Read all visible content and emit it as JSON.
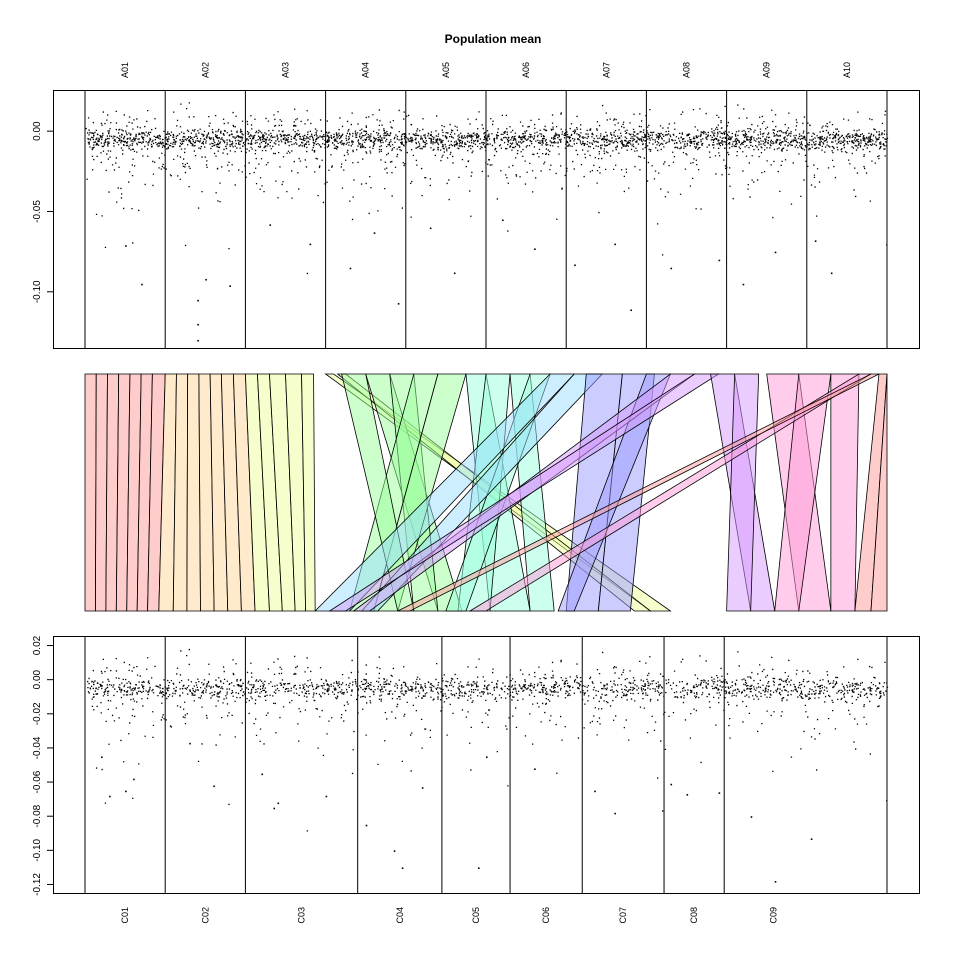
{
  "chart_data": [
    {
      "type": "scatter",
      "title": "Population mean",
      "xlabel": "",
      "ylabel": "",
      "ylim": [
        -0.135,
        0.025
      ],
      "yticks": [
        0.0,
        -0.05,
        -0.1
      ],
      "ytick_labels": [
        "0.00",
        "-0.05",
        "-0.10"
      ],
      "chromosomes": [
        {
          "name": "A01",
          "start": 0.0,
          "end": 1.0
        },
        {
          "name": "A02",
          "start": 1.0,
          "end": 2.0
        },
        {
          "name": "A03",
          "start": 2.0,
          "end": 3.0
        },
        {
          "name": "A04",
          "start": 3.0,
          "end": 4.0
        },
        {
          "name": "A05",
          "start": 4.0,
          "end": 5.0
        },
        {
          "name": "A06",
          "start": 5.0,
          "end": 6.0
        },
        {
          "name": "A07",
          "start": 6.0,
          "end": 7.0
        },
        {
          "name": "A08",
          "start": 7.0,
          "end": 8.0
        },
        {
          "name": "A09",
          "start": 8.0,
          "end": 9.0
        },
        {
          "name": "A10",
          "start": 9.0,
          "end": 10.0
        }
      ],
      "series": [
        {
          "name": "population mean",
          "outliers": [
            [
              0.7,
              -0.095
            ],
            [
              1.4,
              -0.12
            ],
            [
              1.4,
              -0.13
            ],
            [
              1.4,
              -0.105
            ],
            [
              1.8,
              -0.096
            ],
            [
              3.3,
              -0.085
            ],
            [
              3.9,
              -0.107
            ],
            [
              4.6,
              -0.088
            ],
            [
              6.8,
              -0.111
            ],
            [
              7.3,
              -0.085
            ],
            [
              8.2,
              -0.095
            ],
            [
              9.3,
              -0.088
            ],
            [
              1.5,
              -0.092
            ],
            [
              2.8,
              -0.07
            ],
            [
              5.6,
              -0.073
            ],
            [
              8.6,
              -0.075
            ],
            [
              3.6,
              -0.063
            ],
            [
              6.1,
              -0.083
            ],
            [
              9.1,
              -0.068
            ],
            [
              0.5,
              -0.071
            ],
            [
              4.3,
              -0.06
            ],
            [
              6.6,
              -0.07
            ],
            [
              7.9,
              -0.08
            ],
            [
              2.3,
              -0.058
            ],
            [
              5.2,
              -0.055
            ]
          ]
        }
      ]
    },
    {
      "type": "diagram",
      "title": "",
      "ribbons": [
        {
          "top": [
            0.0,
            0.14
          ],
          "bottom": [
            0.0,
            0.13
          ],
          "color": "#ff9a9a"
        },
        {
          "top": [
            0.14,
            0.28
          ],
          "bottom": [
            0.13,
            0.26
          ],
          "color": "#ff9a9a"
        },
        {
          "top": [
            0.28,
            0.42
          ],
          "bottom": [
            0.26,
            0.39
          ],
          "color": "#ff9a9a"
        },
        {
          "top": [
            0.42,
            0.56
          ],
          "bottom": [
            0.39,
            0.52
          ],
          "color": "#ff9a9a"
        },
        {
          "top": [
            0.56,
            0.7
          ],
          "bottom": [
            0.52,
            0.65
          ],
          "color": "#ff9a9a"
        },
        {
          "top": [
            0.7,
            0.84
          ],
          "bottom": [
            0.65,
            0.78
          ],
          "color": "#ff9a9a"
        },
        {
          "top": [
            0.84,
            1.0
          ],
          "bottom": [
            0.78,
            0.92
          ],
          "color": "#ff9a9a"
        },
        {
          "top": [
            1.0,
            1.14
          ],
          "bottom": [
            0.92,
            1.1
          ],
          "color": "#ffd89a"
        },
        {
          "top": [
            1.14,
            1.28
          ],
          "bottom": [
            1.1,
            1.27
          ],
          "color": "#ffd89a"
        },
        {
          "top": [
            1.28,
            1.42
          ],
          "bottom": [
            1.27,
            1.44
          ],
          "color": "#ffd89a"
        },
        {
          "top": [
            1.42,
            1.56
          ],
          "bottom": [
            1.44,
            1.61
          ],
          "color": "#ffd89a"
        },
        {
          "top": [
            1.56,
            1.7
          ],
          "bottom": [
            1.61,
            1.78
          ],
          "color": "#ffd89a"
        },
        {
          "top": [
            1.7,
            1.85
          ],
          "bottom": [
            1.78,
            1.95
          ],
          "color": "#ffd89a"
        },
        {
          "top": [
            1.85,
            2.0
          ],
          "bottom": [
            1.95,
            2.12
          ],
          "color": "#ffd89a"
        },
        {
          "top": [
            2.0,
            2.15
          ],
          "bottom": [
            2.12,
            2.3
          ],
          "color": "#eeff9a"
        },
        {
          "top": [
            2.15,
            2.3
          ],
          "bottom": [
            2.3,
            2.46
          ],
          "color": "#eeff9a"
        },
        {
          "top": [
            2.3,
            2.5
          ],
          "bottom": [
            2.46,
            2.62
          ],
          "color": "#eeff9a"
        },
        {
          "top": [
            2.5,
            2.7
          ],
          "bottom": [
            2.62,
            2.75
          ],
          "color": "#eeff9a"
        },
        {
          "top": [
            2.7,
            2.85
          ],
          "bottom": [
            2.75,
            2.87
          ],
          "color": "#eeff9a"
        },
        {
          "top": [
            3.0,
            3.1
          ],
          "bottom": [
            7.05,
            7.3
          ],
          "color": "#eeff9a"
        },
        {
          "top": [
            3.15,
            3.25
          ],
          "bottom": [
            6.85,
            7.05
          ],
          "color": "#eeff9a"
        },
        {
          "top": [
            3.5,
            3.8
          ],
          "bottom": [
            4.4,
            4.7
          ],
          "color": "#9aff9a"
        },
        {
          "top": [
            3.8,
            4.1
          ],
          "bottom": [
            4.1,
            4.4
          ],
          "color": "#9aff9a"
        },
        {
          "top": [
            4.1,
            4.4
          ],
          "bottom": [
            3.3,
            3.6
          ],
          "color": "#9aff9a"
        },
        {
          "top": [
            4.4,
            4.75
          ],
          "bottom": [
            3.6,
            3.9
          ],
          "color": "#9aff9a"
        },
        {
          "top": [
            3.2,
            3.5
          ],
          "bottom": [
            3.9,
            4.1
          ],
          "color": "#9aff9a"
        },
        {
          "top": [
            4.75,
            5.0
          ],
          "bottom": [
            5.05,
            5.55
          ],
          "color": "#9affdc"
        },
        {
          "top": [
            5.0,
            5.3
          ],
          "bottom": [
            4.65,
            5.05
          ],
          "color": "#9affdc"
        },
        {
          "top": [
            5.3,
            5.55
          ],
          "bottom": [
            5.55,
            5.85
          ],
          "color": "#9affdc"
        },
        {
          "top": [
            5.55,
            5.8
          ],
          "bottom": [
            4.5,
            4.75
          ],
          "color": "#9affdc"
        },
        {
          "top": [
            5.8,
            6.1
          ],
          "bottom": [
            2.87,
            3.3
          ],
          "color": "#9addff"
        },
        {
          "top": [
            6.1,
            6.45
          ],
          "bottom": [
            3.45,
            3.65
          ],
          "color": "#9addff"
        },
        {
          "top": [
            6.25,
            6.7
          ],
          "bottom": [
            6.0,
            6.4
          ],
          "color": "#9a9aff"
        },
        {
          "top": [
            6.7,
            7.1
          ],
          "bottom": [
            6.4,
            6.8
          ],
          "color": "#9a9aff"
        },
        {
          "top": [
            7.0,
            7.3
          ],
          "bottom": [
            5.9,
            6.1
          ],
          "color": "#9a9aff"
        },
        {
          "top": [
            7.3,
            7.6
          ],
          "bottom": [
            3.35,
            3.55
          ],
          "color": "#d89aff"
        },
        {
          "top": [
            7.6,
            7.9
          ],
          "bottom": [
            3.05,
            3.25
          ],
          "color": "#d89aff"
        },
        {
          "top": [
            7.8,
            8.1
          ],
          "bottom": [
            8.3,
            8.6
          ],
          "color": "#d89aff"
        },
        {
          "top": [
            8.1,
            8.4
          ],
          "bottom": [
            8.0,
            8.3
          ],
          "color": "#d89aff"
        },
        {
          "top": [
            8.5,
            8.9
          ],
          "bottom": [
            8.9,
            9.3
          ],
          "color": "#ff9ad8"
        },
        {
          "top": [
            8.9,
            9.3
          ],
          "bottom": [
            8.6,
            8.9
          ],
          "color": "#ff9ad8"
        },
        {
          "top": [
            9.3,
            9.65
          ],
          "bottom": [
            9.3,
            9.6
          ],
          "color": "#ff9ad8"
        },
        {
          "top": [
            9.65,
            9.8
          ],
          "bottom": [
            4.8,
            5.0
          ],
          "color": "#ff9ad8"
        },
        {
          "top": [
            9.8,
            9.9
          ],
          "bottom": [
            3.9,
            4.05
          ],
          "color": "#ff9a9a"
        },
        {
          "top": [
            9.9,
            10.0
          ],
          "bottom": [
            9.6,
            9.8
          ],
          "color": "#ff9a9a"
        },
        {
          "top": [
            10.0,
            10.0
          ],
          "bottom": [
            9.8,
            10.0
          ],
          "color": "#ff9a9a"
        }
      ]
    },
    {
      "type": "scatter",
      "title": "",
      "xlabel": "",
      "ylabel": "",
      "ylim": [
        -0.125,
        0.025
      ],
      "yticks": [
        0.02,
        0.0,
        -0.02,
        -0.04,
        -0.06,
        -0.08,
        -0.1,
        -0.12
      ],
      "ytick_labels": [
        "0.02",
        "0.00",
        "-0.02",
        "-0.04",
        "-0.06",
        "-0.08",
        "-0.10",
        "-0.12"
      ],
      "chromosomes": [
        {
          "name": "C01",
          "start": 0.0,
          "end": 1.0
        },
        {
          "name": "C02",
          "start": 1.0,
          "end": 2.0
        },
        {
          "name": "C03",
          "start": 2.0,
          "end": 3.4
        },
        {
          "name": "C04",
          "start": 3.4,
          "end": 4.45
        },
        {
          "name": "C05",
          "start": 4.45,
          "end": 5.3
        },
        {
          "name": "C06",
          "start": 5.3,
          "end": 6.2
        },
        {
          "name": "C07",
          "start": 6.2,
          "end": 7.22
        },
        {
          "name": "C08",
          "start": 7.22,
          "end": 7.97
        },
        {
          "name": "C09",
          "start": 7.97,
          "end": 9.2
        }
      ],
      "series": [
        {
          "name": "population mean",
          "outliers": [
            [
              0.3,
              -0.068
            ],
            [
              0.5,
              -0.065
            ],
            [
              0.6,
              -0.058
            ],
            [
              1.6,
              -0.062
            ],
            [
              2.35,
              -0.075
            ],
            [
              2.4,
              -0.072
            ],
            [
              3.0,
              -0.068
            ],
            [
              3.85,
              -0.1
            ],
            [
              3.95,
              -0.11
            ],
            [
              4.9,
              -0.11
            ],
            [
              6.6,
              -0.078
            ],
            [
              7.5,
              -0.067
            ],
            [
              7.9,
              -0.066
            ],
            [
              8.6,
              -0.118
            ],
            [
              9.05,
              -0.093
            ],
            [
              8.3,
              -0.08
            ],
            [
              3.5,
              -0.085
            ],
            [
              0.2,
              -0.045
            ],
            [
              1.3,
              -0.037
            ],
            [
              5.0,
              -0.045
            ],
            [
              6.35,
              -0.065
            ],
            [
              7.3,
              -0.061
            ],
            [
              4.2,
              -0.063
            ],
            [
              2.2,
              -0.055
            ],
            [
              5.6,
              -0.052
            ]
          ]
        }
      ]
    }
  ]
}
